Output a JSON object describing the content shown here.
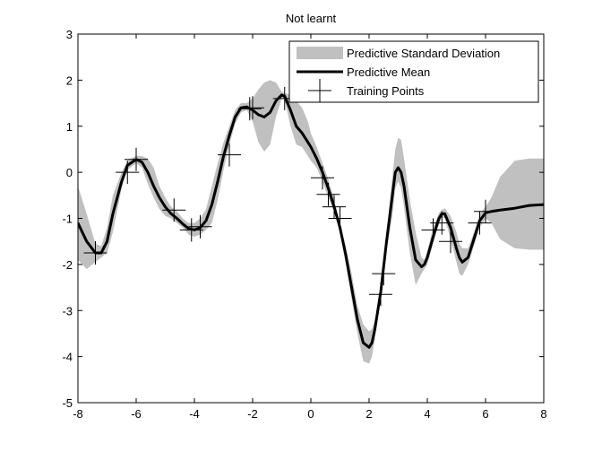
{
  "chart_data": {
    "type": "line",
    "title": "Not learnt",
    "xlabel": "",
    "ylabel": "",
    "xlim": [
      -8,
      8
    ],
    "ylim": [
      -5,
      3
    ],
    "xticks": [
      -8,
      -6,
      -4,
      -2,
      0,
      2,
      4,
      6,
      8
    ],
    "yticks": [
      -5,
      -4,
      -3,
      -2,
      -1,
      0,
      1,
      2,
      3
    ],
    "xtick_labels": [
      "-8",
      "-6",
      "-4",
      "-2",
      "0",
      "2",
      "4",
      "6",
      "8"
    ],
    "ytick_labels": [
      "-5",
      "-4",
      "-3",
      "-2",
      "-1",
      "0",
      "1",
      "2",
      "3"
    ],
    "grid": false,
    "legend_position": "top-right",
    "legend": [
      {
        "label": "Predictive Standard Deviation",
        "kind": "band",
        "color": "#c0c0c0"
      },
      {
        "label": "Predictive Mean",
        "kind": "line",
        "color": "#000000"
      },
      {
        "label": "Training Points",
        "kind": "marker",
        "color": "#000000"
      }
    ],
    "colors": {
      "band": "#c0c0c0",
      "mean": "#000000",
      "points": "#000000"
    },
    "series": [
      {
        "name": "Predictive Mean",
        "x": [
          -8.0,
          -7.7,
          -7.4,
          -7.2,
          -7.0,
          -6.8,
          -6.5,
          -6.3,
          -6.0,
          -5.8,
          -5.6,
          -5.4,
          -5.2,
          -5.0,
          -4.8,
          -4.6,
          -4.4,
          -4.2,
          -4.0,
          -3.8,
          -3.6,
          -3.4,
          -3.2,
          -3.0,
          -2.8,
          -2.6,
          -2.4,
          -2.2,
          -2.0,
          -1.8,
          -1.6,
          -1.4,
          -1.2,
          -1.0,
          -0.9,
          -0.7,
          -0.5,
          -0.3,
          -0.1,
          0.0,
          0.2,
          0.4,
          0.6,
          0.8,
          1.0,
          1.2,
          1.4,
          1.6,
          1.8,
          2.0,
          2.1,
          2.2,
          2.4,
          2.6,
          2.8,
          2.9,
          3.0,
          3.1,
          3.2,
          3.4,
          3.6,
          3.8,
          3.9,
          4.0,
          4.2,
          4.4,
          4.5,
          4.6,
          4.8,
          5.0,
          5.1,
          5.2,
          5.4,
          5.6,
          5.8,
          6.0,
          6.2,
          6.5,
          7.0,
          7.5,
          8.0
        ],
        "y": [
          -1.1,
          -1.5,
          -1.75,
          -1.75,
          -1.5,
          -0.9,
          -0.2,
          0.15,
          0.28,
          0.22,
          0.0,
          -0.3,
          -0.55,
          -0.75,
          -0.9,
          -1.0,
          -1.12,
          -1.22,
          -1.25,
          -1.2,
          -1.05,
          -0.7,
          -0.2,
          0.35,
          0.8,
          1.2,
          1.4,
          1.42,
          1.35,
          1.25,
          1.2,
          1.3,
          1.55,
          1.68,
          1.65,
          1.35,
          1.0,
          0.85,
          0.65,
          0.55,
          0.3,
          0.0,
          -0.35,
          -0.75,
          -1.2,
          -1.8,
          -2.5,
          -3.2,
          -3.7,
          -3.8,
          -3.7,
          -3.4,
          -2.6,
          -1.5,
          -0.5,
          0.0,
          0.1,
          0.0,
          -0.3,
          -1.2,
          -1.9,
          -2.05,
          -2.0,
          -1.85,
          -1.4,
          -1.0,
          -0.9,
          -0.9,
          -1.2,
          -1.65,
          -1.85,
          -1.95,
          -1.85,
          -1.45,
          -1.05,
          -0.88,
          -0.85,
          -0.82,
          -0.78,
          -0.72,
          -0.7
        ]
      },
      {
        "name": "Predictive Standard Deviation",
        "x": [
          -8.0,
          -7.7,
          -7.4,
          -7.2,
          -7.0,
          -6.8,
          -6.5,
          -6.3,
          -6.0,
          -5.8,
          -5.6,
          -5.4,
          -5.2,
          -5.0,
          -4.8,
          -4.6,
          -4.4,
          -4.2,
          -4.0,
          -3.8,
          -3.6,
          -3.4,
          -3.2,
          -3.0,
          -2.8,
          -2.6,
          -2.4,
          -2.2,
          -2.0,
          -1.8,
          -1.6,
          -1.4,
          -1.2,
          -1.0,
          -0.9,
          -0.7,
          -0.5,
          -0.3,
          -0.1,
          0.0,
          0.2,
          0.4,
          0.6,
          0.8,
          1.0,
          1.2,
          1.4,
          1.6,
          1.8,
          2.0,
          2.1,
          2.2,
          2.4,
          2.6,
          2.8,
          2.9,
          3.0,
          3.1,
          3.2,
          3.4,
          3.6,
          3.8,
          3.9,
          4.0,
          4.2,
          4.4,
          4.5,
          4.6,
          4.8,
          5.0,
          5.1,
          5.2,
          5.4,
          5.6,
          5.8,
          6.0,
          6.2,
          6.5,
          7.0,
          7.5,
          8.0
        ],
        "lower": [
          -1.9,
          -2.1,
          -1.95,
          -1.85,
          -1.75,
          -1.3,
          -0.35,
          0.05,
          0.2,
          0.1,
          -0.25,
          -0.55,
          -0.8,
          -0.95,
          -1.0,
          -1.1,
          -1.2,
          -1.35,
          -1.4,
          -1.35,
          -1.25,
          -1.1,
          -0.6,
          0.05,
          0.6,
          1.05,
          1.3,
          1.35,
          1.1,
          0.65,
          0.45,
          0.6,
          1.2,
          1.6,
          1.58,
          1.0,
          0.6,
          0.55,
          0.35,
          0.25,
          0.1,
          -0.2,
          -0.55,
          -0.85,
          -1.3,
          -2.0,
          -2.75,
          -3.5,
          -4.1,
          -4.15,
          -4.0,
          -3.6,
          -2.75,
          -1.7,
          -0.95,
          -0.35,
          -0.2,
          -0.35,
          -0.75,
          -1.75,
          -2.45,
          -2.2,
          -2.1,
          -2.0,
          -1.55,
          -1.12,
          -0.98,
          -1.0,
          -1.45,
          -1.95,
          -2.2,
          -2.25,
          -2.0,
          -1.6,
          -1.2,
          -1.0,
          -1.1,
          -1.45,
          -1.65,
          -1.68,
          -1.68
        ],
        "upper": [
          -0.3,
          -0.9,
          -1.55,
          -1.6,
          -1.2,
          -0.5,
          0.0,
          0.25,
          0.36,
          0.35,
          0.3,
          0.1,
          -0.3,
          -0.55,
          -0.75,
          -0.85,
          -1.0,
          -1.1,
          -1.1,
          -1.0,
          -0.8,
          -0.3,
          0.2,
          0.65,
          1.0,
          1.35,
          1.5,
          1.5,
          1.6,
          1.8,
          1.95,
          2.0,
          1.95,
          1.75,
          1.72,
          1.68,
          1.55,
          1.4,
          1.1,
          0.85,
          0.55,
          0.2,
          -0.15,
          -0.6,
          -1.1,
          -1.6,
          -2.2,
          -2.9,
          -3.3,
          -3.45,
          -3.4,
          -3.2,
          -2.45,
          -1.3,
          -0.1,
          0.5,
          0.75,
          0.7,
          0.3,
          -0.6,
          -1.3,
          -1.85,
          -1.9,
          -1.7,
          -1.2,
          -0.88,
          -0.82,
          -0.78,
          -0.95,
          -1.3,
          -1.55,
          -1.65,
          -1.65,
          -1.3,
          -0.9,
          -0.75,
          -0.55,
          -0.1,
          0.25,
          0.3,
          0.3
        ]
      },
      {
        "name": "Training Points",
        "x": [
          -7.4,
          -6.3,
          -6.0,
          -4.7,
          -4.1,
          -3.8,
          -2.8,
          -2.1,
          -2.0,
          -0.9,
          0.4,
          0.6,
          0.8,
          1.0,
          2.4,
          2.5,
          4.2,
          4.5,
          4.8,
          5.8,
          6.0
        ],
        "y": [
          -1.75,
          0.0,
          0.28,
          -0.82,
          -1.25,
          -1.18,
          0.38,
          1.38,
          1.4,
          1.6,
          -0.12,
          -0.48,
          -0.75,
          -1.0,
          -2.65,
          -2.2,
          -1.25,
          -1.1,
          -1.5,
          -1.1,
          -0.85
        ]
      }
    ]
  }
}
